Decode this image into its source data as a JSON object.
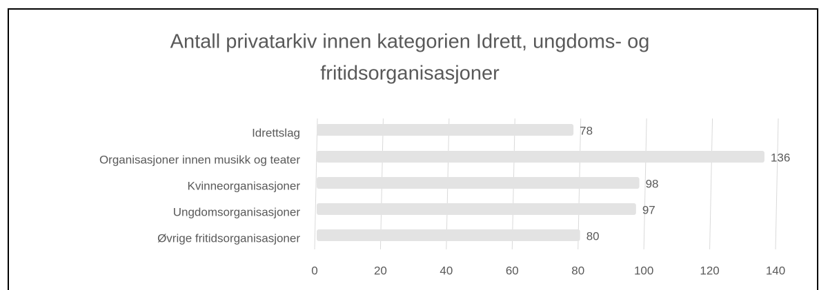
{
  "chart_data": {
    "type": "bar",
    "orientation": "horizontal",
    "title": "Antall privatarkiv innen kategorien Idrett, ungdoms- og fritidsorganisasjoner",
    "title_lines": [
      "Antall privatarkiv innen kategorien Idrett, ungdoms- og",
      "fritidsorganisasjoner"
    ],
    "categories": [
      "Idrettslag",
      "Organisasjoner innen musikk og teater",
      "Kvinneorganisasjoner",
      "Ungdomsorganisasjoner",
      "Øvrige fritidsorganisasjoner"
    ],
    "values": [
      78,
      136,
      98,
      97,
      80
    ],
    "color": "#e3e3e3",
    "xlim": [
      0,
      140
    ],
    "xticks": [
      0,
      20,
      40,
      60,
      80,
      100,
      120,
      140
    ],
    "grid": true
  }
}
